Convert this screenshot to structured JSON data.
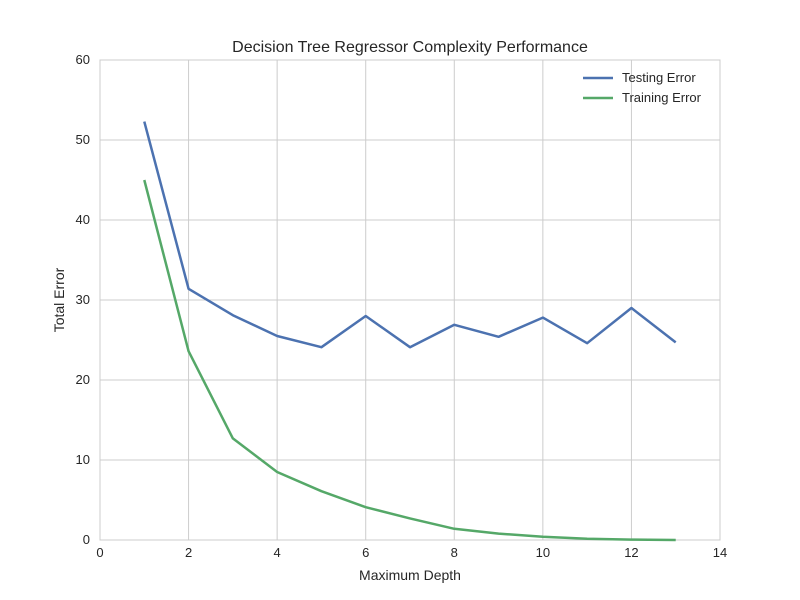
{
  "chart_data": {
    "type": "line",
    "title": "Decision Tree Regressor Complexity Performance",
    "xlabel": "Maximum Depth",
    "ylabel": "Total Error",
    "xlim": [
      0,
      14
    ],
    "ylim": [
      0,
      60
    ],
    "xticks": [
      0,
      2,
      4,
      6,
      8,
      10,
      12,
      14
    ],
    "yticks": [
      0,
      10,
      20,
      30,
      40,
      50,
      60
    ],
    "grid": true,
    "legend_position": "top-right",
    "x": [
      1,
      2,
      3,
      4,
      5,
      6,
      7,
      8,
      9,
      10,
      11,
      12,
      13
    ],
    "series": [
      {
        "name": "Testing Error",
        "color": "#4c72b0",
        "values": [
          52.3,
          31.4,
          28.1,
          25.5,
          24.1,
          28.0,
          24.1,
          26.9,
          25.4,
          27.8,
          24.6,
          29.0,
          24.7
        ]
      },
      {
        "name": "Training Error",
        "color": "#55a868",
        "values": [
          45.0,
          23.6,
          12.7,
          8.5,
          6.1,
          4.1,
          2.7,
          1.4,
          0.8,
          0.4,
          0.15,
          0.05,
          0.0
        ]
      }
    ]
  }
}
